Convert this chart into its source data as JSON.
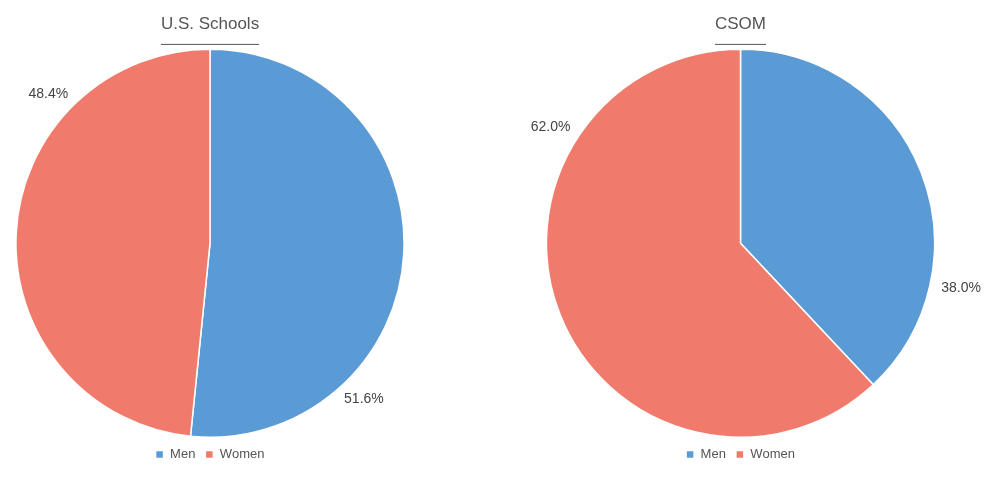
{
  "chart_data": [
    {
      "type": "pie",
      "title": "U.S. Schools",
      "categories": [
        "Men",
        "Women"
      ],
      "values": [
        51.6,
        48.4
      ],
      "colors": [
        "#5b9bd5",
        "#f07b6c"
      ],
      "value_labels": [
        "51.6%",
        "48.4%"
      ],
      "legend": "bottom"
    },
    {
      "type": "pie",
      "title": "CSOM",
      "categories": [
        "Men",
        "Women"
      ],
      "values": [
        38.0,
        62.0
      ],
      "colors": [
        "#5b9bd5",
        "#f07b6c"
      ],
      "value_labels": [
        "38.0%",
        "62.0%"
      ],
      "legend": "bottom"
    }
  ]
}
